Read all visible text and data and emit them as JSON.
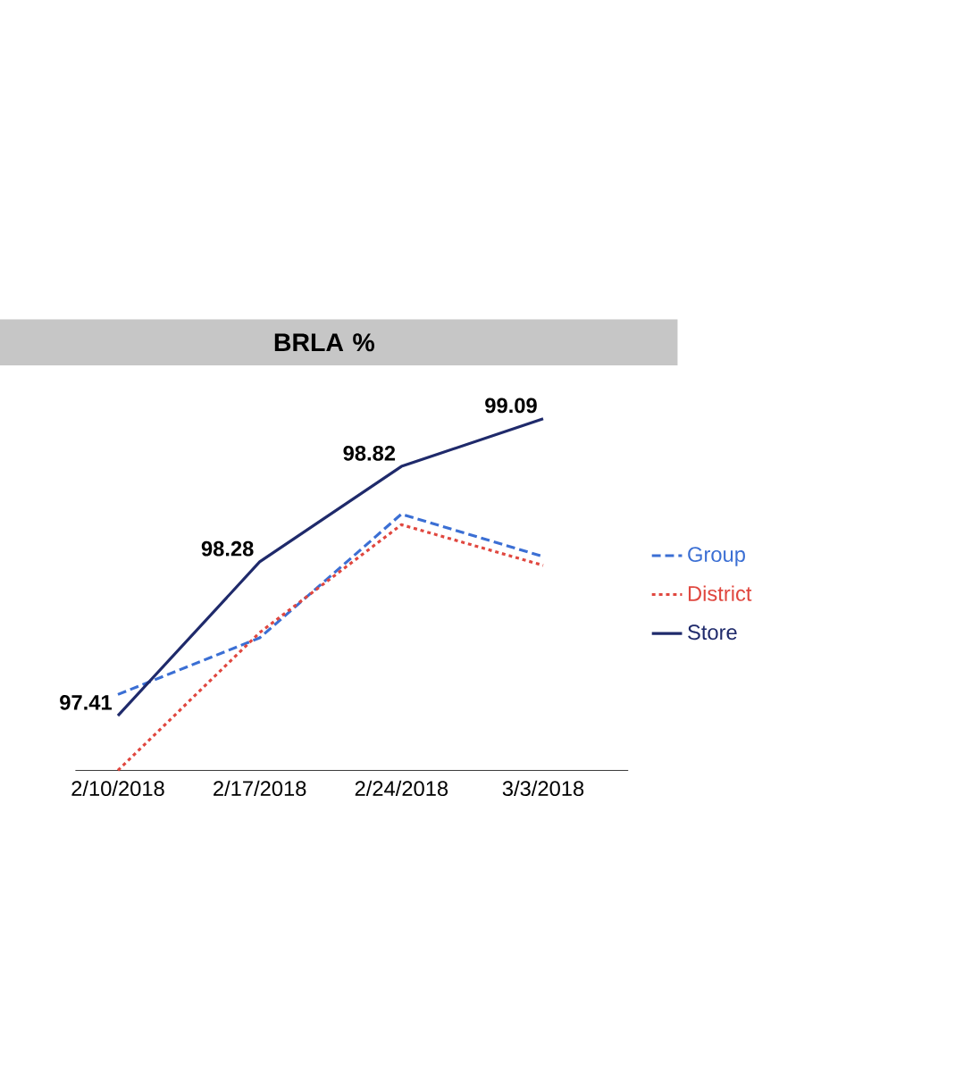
{
  "chart_data": {
    "type": "line",
    "title": "BRLA %",
    "categories": [
      "2/10/2018",
      "2/17/2018",
      "2/24/2018",
      "3/3/2018"
    ],
    "series": [
      {
        "name": "Group",
        "color": "#3b6fd4",
        "line_style": "dashed",
        "values": [
          97.53,
          97.85,
          98.55,
          98.31
        ]
      },
      {
        "name": "District",
        "color": "#e0473f",
        "line_style": "dotted",
        "values": [
          97.1,
          97.88,
          98.49,
          98.26
        ]
      },
      {
        "name": "Store",
        "color": "#1f2a6b",
        "line_style": "solid",
        "values": [
          97.41,
          98.28,
          98.82,
          99.09
        ],
        "value_labels": [
          "97.41",
          "98.28",
          "98.82",
          "99.09"
        ]
      }
    ],
    "legend": "right",
    "grid": false,
    "marker": "none"
  }
}
